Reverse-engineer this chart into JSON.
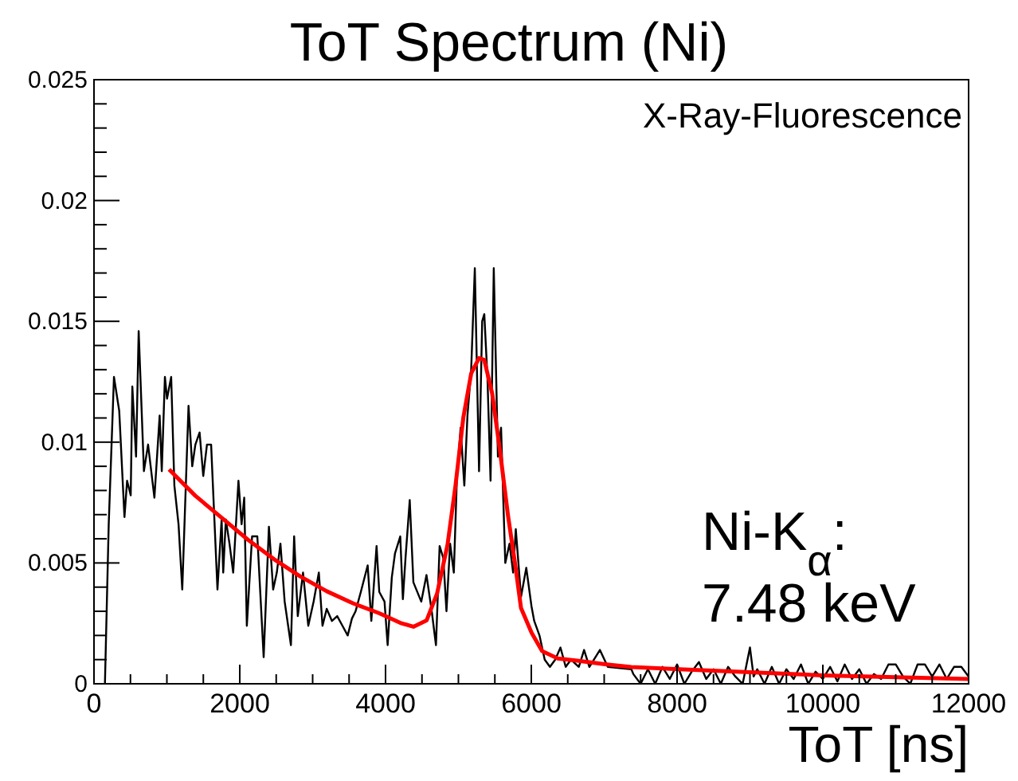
{
  "chart_data": {
    "type": "line",
    "title": "ToT Spectrum (Ni)",
    "xlabel": "ToT [ns]",
    "xlim": [
      0,
      12000
    ],
    "ylim": [
      0,
      0.025
    ],
    "xticks": [
      0,
      {
        "value": 500,
        "label": null
      },
      {
        "value": 1000,
        "label": null
      },
      {
        "value": 1500,
        "label": null
      },
      2000,
      {
        "value": 2500,
        "label": null
      },
      {
        "value": 3000,
        "label": null
      },
      {
        "value": 3500,
        "label": null
      },
      4000,
      {
        "value": 4500,
        "label": null
      },
      {
        "value": 5000,
        "label": null
      },
      {
        "value": 5500,
        "label": null
      },
      6000,
      {
        "value": 6500,
        "label": null
      },
      {
        "value": 7000,
        "label": null
      },
      {
        "value": 7500,
        "label": null
      },
      8000,
      {
        "value": 8500,
        "label": null
      },
      {
        "value": 9000,
        "label": null
      },
      {
        "value": 9500,
        "label": null
      },
      10000,
      {
        "value": 10500,
        "label": null
      },
      {
        "value": 11000,
        "label": null
      },
      {
        "value": 11500,
        "label": null
      },
      12000
    ],
    "yticks": [
      0,
      {
        "value": 0.001,
        "label": null
      },
      {
        "value": 0.002,
        "label": null
      },
      {
        "value": 0.003,
        "label": null
      },
      {
        "value": 0.004,
        "label": null
      },
      0.005,
      {
        "value": 0.006,
        "label": null
      },
      {
        "value": 0.007,
        "label": null
      },
      {
        "value": 0.008,
        "label": null
      },
      {
        "value": 0.009,
        "label": null
      },
      0.01,
      {
        "value": 0.011,
        "label": null
      },
      {
        "value": 0.012,
        "label": null
      },
      {
        "value": 0.013,
        "label": null
      },
      {
        "value": 0.014,
        "label": null
      },
      0.015,
      {
        "value": 0.016,
        "label": null
      },
      {
        "value": 0.017,
        "label": null
      },
      {
        "value": 0.018,
        "label": null
      },
      {
        "value": 0.019,
        "label": null
      },
      0.02,
      {
        "value": 0.021,
        "label": null
      },
      {
        "value": 0.022,
        "label": null
      },
      {
        "value": 0.023,
        "label": null
      },
      {
        "value": 0.024,
        "label": null
      },
      0.025
    ],
    "grid": false,
    "marker": "none",
    "line_style": "solid",
    "annotations": [
      "X-Ray-Fluorescence",
      "Ni-K$_{α}$:",
      "7.48 keV"
    ],
    "series": [
      {
        "color": "#000000",
        "x": [
          150,
          202,
          274,
          346,
          418,
          454,
          504,
          526,
          577,
          613,
          685,
          742,
          829,
          901,
          930,
          973,
          1002,
          1059,
          1103,
          1160,
          1211,
          1297,
          1348,
          1391,
          1449,
          1499,
          1550,
          1607,
          1694,
          1751,
          1773,
          1809,
          1859,
          1910,
          1982,
          2025,
          2061,
          2097,
          2169,
          2241,
          2328,
          2400,
          2458,
          2508,
          2558,
          2616,
          2702,
          2746,
          2796,
          2868,
          2940,
          3013,
          3085,
          3135,
          3193,
          3265,
          3337,
          3409,
          3481,
          3539,
          3589,
          3661,
          3755,
          3805,
          3877,
          3914,
          3986,
          4029,
          4086,
          4130,
          4202,
          4238,
          4274,
          4332,
          4382,
          4490,
          4562,
          4634,
          4692,
          4742,
          4793,
          4836,
          4886,
          4937,
          4980,
          5030,
          5081,
          5124,
          5175,
          5225,
          5283,
          5326,
          5355,
          5398,
          5441,
          5485,
          5542,
          5585,
          5643,
          5701,
          5751,
          5787,
          5859,
          5931,
          6003,
          6040,
          6112,
          6184,
          6256,
          6328,
          6400,
          6472,
          6544,
          6652,
          6724,
          6797,
          6941,
          7049,
          7373,
          7400,
          7500,
          7600,
          7700,
          7800,
          7900,
          8000,
          8100,
          8200,
          8300,
          8400,
          8500,
          8600,
          8700,
          8800,
          8900,
          9000,
          9050,
          9100,
          9200,
          9300,
          9400,
          9500,
          9600,
          9700,
          9800,
          9900,
          10000,
          10100,
          10200,
          10300,
          10400,
          10500,
          10600,
          10700,
          10800,
          10900,
          11000,
          11100,
          11200,
          11300,
          11400,
          11500,
          11600,
          11700,
          11800,
          11900,
          12000
        ],
        "values": [
          0,
          0.0066,
          0.0127,
          0.0113,
          0.0069,
          0.0084,
          0.0078,
          0.0123,
          0.0094,
          0.0146,
          0.0088,
          0.0099,
          0.0077,
          0.0111,
          0.0088,
          0.0127,
          0.0118,
          0.0127,
          0.0082,
          0.0066,
          0.0039,
          0.0115,
          0.009,
          0.0099,
          0.0104,
          0.0086,
          0.0099,
          0.0099,
          0.0039,
          0.0068,
          0.0046,
          0.0068,
          0.0058,
          0.0046,
          0.0084,
          0.0066,
          0.0077,
          0.0024,
          0.0061,
          0.0061,
          0.0011,
          0.0065,
          0.0039,
          0.0046,
          0.0058,
          0.0034,
          0.0016,
          0.0061,
          0.0028,
          0.0046,
          0.0024,
          0.0034,
          0.0046,
          0.0024,
          0.0031,
          0.0026,
          0.0028,
          0.0024,
          0.002,
          0.0027,
          0.003,
          0.0038,
          0.0049,
          0.0026,
          0.0057,
          0.0038,
          0.0034,
          0.0016,
          0.0044,
          0.0054,
          0.0061,
          0.0035,
          0.0052,
          0.0076,
          0.0042,
          0.0034,
          0.0045,
          0.003,
          0.0016,
          0.0057,
          0.0052,
          0.003,
          0.0058,
          0.0046,
          0.0086,
          0.0106,
          0.0082,
          0.0111,
          0.013,
          0.0172,
          0.0088,
          0.015,
          0.0153,
          0.0127,
          0.0084,
          0.0172,
          0.0094,
          0.0106,
          0.005,
          0.0058,
          0.0046,
          0.0064,
          0.0036,
          0.0048,
          0.0032,
          0.0026,
          0.002,
          0.001,
          0.0007,
          0.001,
          0.0015,
          0.0007,
          0.001,
          0.0007,
          0.0014,
          0.0007,
          0.0014,
          0.0007,
          0.0006,
          0.0004,
          0,
          0.0006,
          0,
          0.0007,
          0.0002,
          0.0008,
          0,
          0.0005,
          0.0009,
          0.0002,
          0.0006,
          0,
          0.0007,
          0.0003,
          0,
          0.0015,
          0.0003,
          0.0006,
          0,
          0.0007,
          0,
          0.0006,
          0.0002,
          0.0008,
          0,
          0.0005,
          0.0002,
          0.0007,
          0.0001,
          0.0008,
          0.0002,
          0.0006,
          0,
          0.0004,
          0.0002,
          0.0008,
          0.0008,
          0.0003,
          0,
          0.0008,
          0.0008,
          0.0003,
          0.0008,
          0.0002,
          0.0007,
          0.0007,
          0.0003
        ]
      },
      {
        "color": "#ff0000",
        "x": [
          1030,
          1391,
          1751,
          2112,
          2472,
          2832,
          3193,
          3553,
          3914,
          4202,
          4382,
          4563,
          4707,
          4851,
          4959,
          5067,
          5175,
          5283,
          5355,
          5463,
          5572,
          5680,
          5788,
          5859,
          6004,
          6148,
          6364,
          6652,
          7012,
          7373,
          8094,
          10000,
          12000
        ],
        "values": [
          0.00887,
          0.00778,
          0.00687,
          0.00596,
          0.00515,
          0.00444,
          0.00383,
          0.00333,
          0.00292,
          0.00252,
          0.00236,
          0.00262,
          0.00373,
          0.00576,
          0.00818,
          0.01101,
          0.01284,
          0.01348,
          0.0134,
          0.01202,
          0.0096,
          0.00697,
          0.00474,
          0.00313,
          0.00211,
          0.00135,
          0.00105,
          0.00095,
          0.00081,
          0.00069,
          0.00059,
          0.00035,
          0.0002
        ]
      }
    ]
  }
}
